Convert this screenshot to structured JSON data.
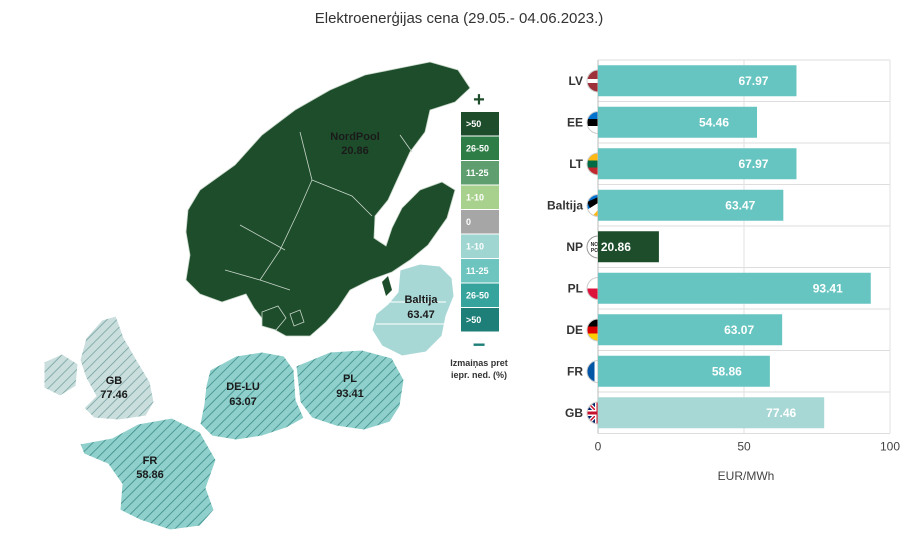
{
  "title": "Elektroenerģijas cena (29.05.- 04.06.2023.)",
  "colors": {
    "nordpool": "#1e4d2b",
    "increase": "#66c4c1",
    "increase_light": "#a8d8d6",
    "hatch": "#2f6f6c"
  },
  "map": {
    "regions": [
      {
        "name": "NordPool",
        "value": "20.86"
      },
      {
        "name": "Baltija",
        "value": "63.47"
      },
      {
        "name": "GB",
        "value": "77.46"
      },
      {
        "name": "DE-LU",
        "value": "63.07"
      },
      {
        "name": "PL",
        "value": "93.41"
      },
      {
        "name": "FR",
        "value": "58.86"
      }
    ],
    "legend": {
      "plus_sign": "+",
      "minus_sign": "−",
      "items": [
        {
          "label": ">50",
          "color": "#1e4d2b"
        },
        {
          "label": "26-50",
          "color": "#2e7d46"
        },
        {
          "label": "11-25",
          "color": "#5f9e6e"
        },
        {
          "label": "1-10",
          "color": "#a9d18e"
        },
        {
          "label": "0",
          "color": "#a6a6a6"
        },
        {
          "label": "1-10",
          "color": "#9fd6d2"
        },
        {
          "label": "11-25",
          "color": "#6ec4bf"
        },
        {
          "label": "26-50",
          "color": "#36a39d"
        },
        {
          "label": ">50",
          "color": "#1d7f78"
        }
      ],
      "caption_line1": "Izmaiņas pret",
      "caption_line2": "iepr. ned. (%)"
    }
  },
  "chart_data": {
    "type": "bar",
    "orientation": "horizontal",
    "categories": [
      "LV",
      "EE",
      "LT",
      "Baltija",
      "NP",
      "PL",
      "DE",
      "FR",
      "GB"
    ],
    "values": [
      67.97,
      54.46,
      67.97,
      63.47,
      20.86,
      93.41,
      63.07,
      58.86,
      77.46
    ],
    "value_labels": [
      "67.97",
      "54.46",
      "67.97",
      "63.47",
      "20.86",
      "93.41",
      "63.07",
      "58.86",
      "77.46"
    ],
    "bar_colors": [
      "#66c4c1",
      "#66c4c1",
      "#66c4c1",
      "#66c4c1",
      "#1e4d2b",
      "#66c4c1",
      "#66c4c1",
      "#66c4c1",
      "#a8d8d6"
    ],
    "xlim": [
      0,
      100
    ],
    "xticks": [
      "0",
      "50",
      "100"
    ],
    "xlabel": "EUR/MWh",
    "grid": true
  }
}
